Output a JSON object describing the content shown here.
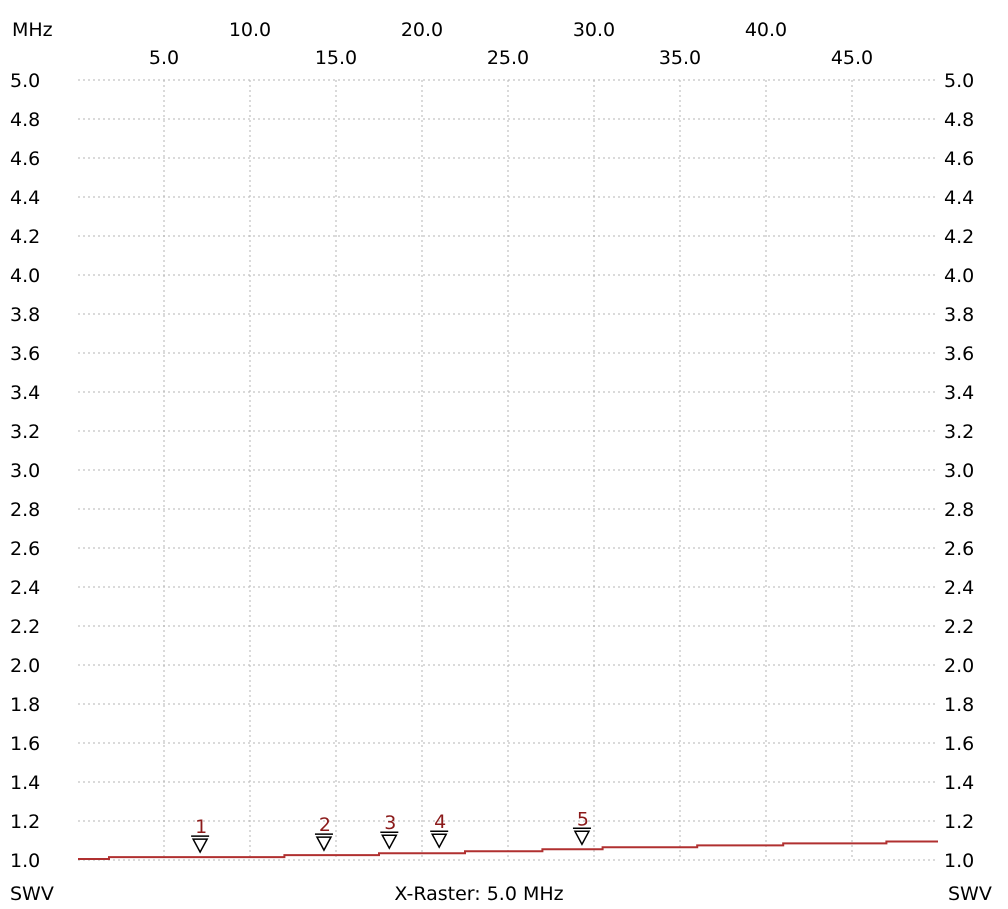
{
  "chart_data": {
    "type": "line",
    "x_unit_label": "MHz",
    "y_label_left": "SWV",
    "y_label_right": "SWV",
    "footer": "X-Raster: 5.0 MHz",
    "xlim": [
      0.0,
      50.0
    ],
    "ylim": [
      1.0,
      5.0
    ],
    "y_ticks": [
      "1.0",
      "1.2",
      "1.4",
      "1.6",
      "1.8",
      "2.0",
      "2.2",
      "2.4",
      "2.6",
      "2.8",
      "3.0",
      "3.2",
      "3.4",
      "3.6",
      "3.8",
      "4.0",
      "4.2",
      "4.4",
      "4.6",
      "4.8",
      "5.0"
    ],
    "x_ticks_upper": [
      {
        "value": 10.0,
        "label": "10.0"
      },
      {
        "value": 20.0,
        "label": "20.0"
      },
      {
        "value": 30.0,
        "label": "30.0"
      },
      {
        "value": 40.0,
        "label": "40.0"
      }
    ],
    "x_ticks_lower": [
      {
        "value": 5.0,
        "label": "5.0"
      },
      {
        "value": 15.0,
        "label": "15.0"
      },
      {
        "value": 25.0,
        "label": "25.0"
      },
      {
        "value": 35.0,
        "label": "35.0"
      },
      {
        "value": 45.0,
        "label": "45.0"
      }
    ],
    "grid": true,
    "series": [
      {
        "color": "#b03030",
        "x": [
          0.0,
          1.8,
          1.8,
          12.0,
          12.0,
          17.5,
          17.5,
          22.5,
          22.5,
          27.0,
          27.0,
          30.5,
          30.5,
          36.0,
          36.0,
          41.0,
          41.0,
          47.0,
          47.0,
          50.0
        ],
        "y": [
          1.005,
          1.005,
          1.015,
          1.015,
          1.025,
          1.025,
          1.035,
          1.035,
          1.045,
          1.045,
          1.055,
          1.055,
          1.065,
          1.065,
          1.075,
          1.075,
          1.085,
          1.085,
          1.095,
          1.095
        ]
      }
    ],
    "markers": [
      {
        "label": "1",
        "x": 7.1,
        "y": 1.02
      },
      {
        "label": "2",
        "x": 14.3,
        "y": 1.03
      },
      {
        "label": "3",
        "x": 18.1,
        "y": 1.04
      },
      {
        "label": "4",
        "x": 21.0,
        "y": 1.045
      },
      {
        "label": "5",
        "x": 29.3,
        "y": 1.06
      }
    ],
    "colors": {
      "trace": "#b03030",
      "marker_label": "#8b1a1a",
      "grid": "#b4b4b4",
      "text": "#000000"
    }
  }
}
